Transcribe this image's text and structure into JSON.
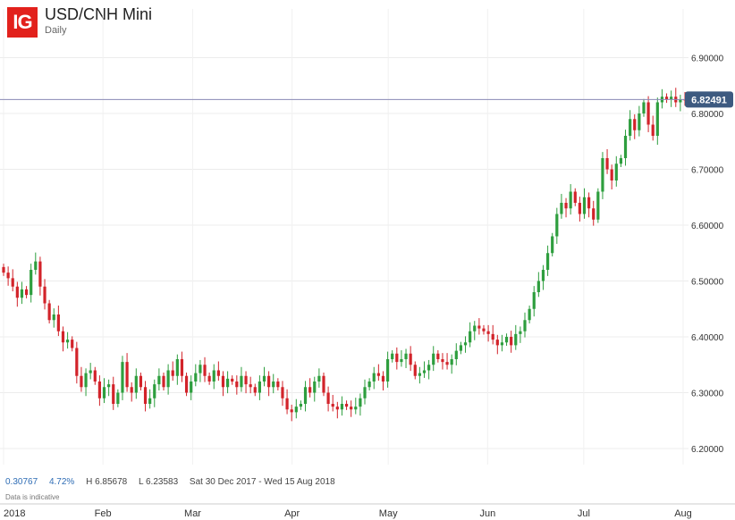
{
  "header": {
    "logo_text": "IG",
    "title": "USD/CNH Mini",
    "subtitle": "Daily"
  },
  "stats": {
    "change": "0.30767",
    "change_pct": "4.72%",
    "high": "H 6.85678",
    "low": "L 6.23583",
    "range": "Sat 30 Dec 2017 - Wed 15 Aug 2018"
  },
  "note": "Data is indicative",
  "colors": {
    "up": "#2e9e3e",
    "down": "#d2232a",
    "price_line": "#8a8ab5",
    "price_badge": "#3d5a80"
  },
  "chart_data": {
    "type": "candlestick",
    "ylim": [
      6.15,
      6.95
    ],
    "y_ticks": [
      6.2,
      6.3,
      6.4,
      6.5,
      6.6,
      6.7,
      6.8,
      6.9
    ],
    "y_tick_labels": [
      "6.20000",
      "6.30000",
      "6.40000",
      "6.50000",
      "6.60000",
      "6.70000",
      "6.80000",
      "6.90000"
    ],
    "x_ticks": [
      {
        "label": "2018",
        "day": 0
      },
      {
        "label": "Feb",
        "day": 31
      },
      {
        "label": "Mar",
        "day": 59
      },
      {
        "label": "Apr",
        "day": 90
      },
      {
        "label": "May",
        "day": 120
      },
      {
        "label": "Jun",
        "day": 151
      },
      {
        "label": "Jul",
        "day": 181
      },
      {
        "label": "Aug",
        "day": 212
      }
    ],
    "current_price": 6.82491,
    "current_price_label": "6.82491",
    "closes": [
      6.515,
      6.505,
      6.49,
      6.47,
      6.485,
      6.475,
      6.52,
      6.535,
      6.49,
      6.46,
      6.43,
      6.44,
      6.41,
      6.39,
      6.395,
      6.38,
      6.33,
      6.31,
      6.335,
      6.34,
      6.32,
      6.29,
      6.31,
      6.315,
      6.28,
      6.3,
      6.355,
      6.31,
      6.3,
      6.33,
      6.31,
      6.28,
      6.29,
      6.315,
      6.33,
      6.31,
      6.34,
      6.33,
      6.36,
      6.33,
      6.3,
      6.32,
      6.335,
      6.35,
      6.33,
      6.32,
      6.34,
      6.33,
      6.31,
      6.325,
      6.32,
      6.31,
      6.33,
      6.315,
      6.31,
      6.3,
      6.32,
      6.33,
      6.31,
      6.32,
      6.31,
      6.29,
      6.27,
      6.265,
      6.275,
      6.28,
      6.31,
      6.3,
      6.32,
      6.33,
      6.3,
      6.28,
      6.275,
      6.27,
      6.28,
      6.275,
      6.27,
      6.275,
      6.29,
      6.31,
      6.32,
      6.335,
      6.33,
      6.32,
      6.36,
      6.37,
      6.355,
      6.36,
      6.37,
      6.35,
      6.33,
      6.335,
      6.34,
      6.35,
      6.37,
      6.36,
      6.355,
      6.35,
      6.36,
      6.375,
      6.385,
      6.39,
      6.41,
      6.42,
      6.415,
      6.41,
      6.405,
      6.395,
      6.385,
      6.39,
      6.4,
      6.385,
      6.405,
      6.41,
      6.43,
      6.45,
      6.48,
      6.5,
      6.52,
      6.55,
      6.58,
      6.62,
      6.64,
      6.63,
      6.66,
      6.64,
      6.62,
      6.65,
      6.63,
      6.61,
      6.66,
      6.72,
      6.7,
      6.68,
      6.71,
      6.72,
      6.76,
      6.79,
      6.77,
      6.8,
      6.82,
      6.78,
      6.76,
      6.82,
      6.83,
      6.825,
      6.83,
      6.82,
      6.825,
      6.82491
    ]
  }
}
